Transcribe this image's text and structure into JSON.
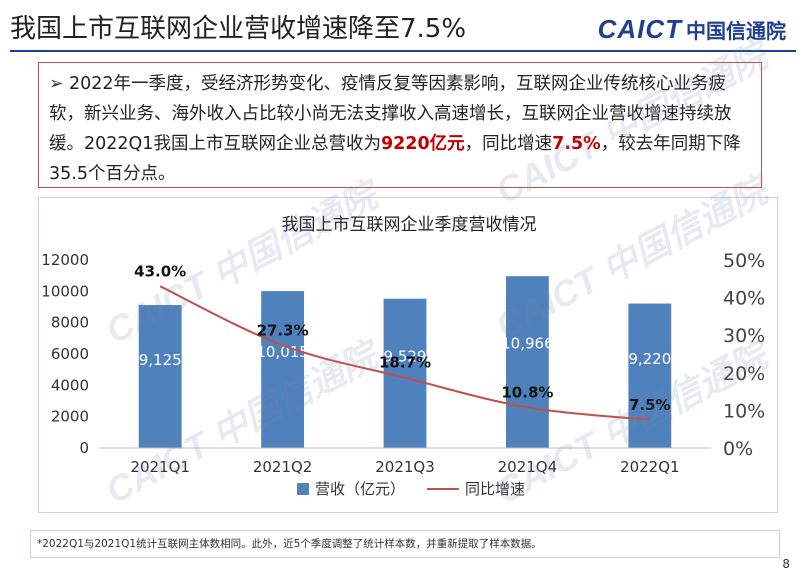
{
  "slide": {
    "title": "我国上市互联网企业营收增速降至7.5%",
    "logo_en": "CAICT",
    "logo_cn": "中国信通院",
    "watermark": "CAICT 中国信通院",
    "page_number": "8"
  },
  "summary": {
    "bullet": "➢",
    "text_1": "2022年一季度，受经济形势变化、疫情反复等因素影响，互联网企业传统核心业务疲软，新兴业务、海外收入占比较小尚无法支撑收入高速增长，互联网企业营收增速持续放缓。2022Q1我国上市互联网企业总营收为",
    "highlight_1": "9220亿元",
    "text_2": "，同比增速",
    "highlight_2": "7.5%",
    "text_3": "，较去年同期下降35.5个百分点。"
  },
  "footnote": "*2022Q1与2021Q1统计互联网主体数相同。此外，近5个季度调整了统计样本数，并重新提取了样本数据。",
  "colors": {
    "bar": "#4f81bd",
    "line": "#c0504d",
    "highlight": "#c00000",
    "brand": "#1f3f8f"
  },
  "chart_data": {
    "type": "bar",
    "title": "我国上市互联网企业季度营收情况",
    "categories": [
      "2021Q1",
      "2021Q2",
      "2021Q3",
      "2021Q4",
      "2022Q1"
    ],
    "series": [
      {
        "name": "营收（亿元）",
        "type": "bar",
        "axis": "left",
        "values": [
          9125,
          10015,
          9529,
          10966,
          9220
        ],
        "labels": [
          "9,125",
          "10,015",
          "9,529",
          "10,966",
          "9,220"
        ]
      },
      {
        "name": "同比增速",
        "type": "line",
        "axis": "right",
        "values": [
          43.0,
          27.3,
          18.7,
          10.8,
          7.5
        ],
        "labels": [
          "43.0%",
          "27.3%",
          "18.7%",
          "10.8%",
          "7.5%"
        ]
      }
    ],
    "y_left": {
      "range": [
        0,
        12000
      ],
      "ticks": [
        0,
        2000,
        4000,
        6000,
        8000,
        10000,
        12000
      ],
      "tick_labels": [
        "0",
        "2000",
        "4000",
        "6000",
        "8000",
        "10000",
        "12000"
      ]
    },
    "y_right": {
      "range": [
        0,
        50
      ],
      "ticks": [
        0,
        10,
        20,
        30,
        40,
        50
      ],
      "tick_labels": [
        "0%",
        "10%",
        "20%",
        "30%",
        "40%",
        "50%"
      ]
    },
    "grid": false,
    "legend_position": "bottom"
  }
}
